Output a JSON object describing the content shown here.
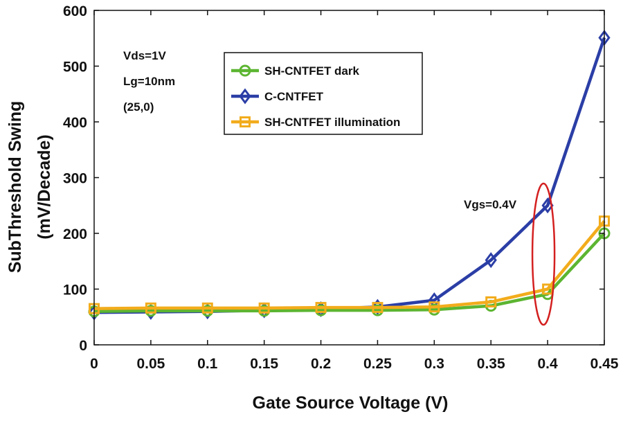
{
  "chart_data": {
    "type": "line",
    "title": "",
    "xlabel": "Gate Source Voltage  (V)",
    "ylabel_line1": "SubThreshold Swing",
    "ylabel_line2": "(mV/Decade)",
    "xlim": [
      0,
      0.45
    ],
    "ylim": [
      0,
      600
    ],
    "x": [
      0,
      0.05,
      0.1,
      0.15,
      0.2,
      0.25,
      0.3,
      0.35,
      0.4,
      0.45
    ],
    "x_tick_labels": [
      "0",
      "0.05",
      "0.1",
      "0.15",
      "0.2",
      "0.25",
      "0.3",
      "0.35",
      "0.4",
      "0.45"
    ],
    "y_ticks": [
      0,
      100,
      200,
      300,
      400,
      500,
      600
    ],
    "y_tick_labels": [
      "0",
      "100",
      "200",
      "300",
      "400",
      "500",
      "600"
    ],
    "legend_position": "top-center",
    "series": [
      {
        "name": "SH-CNTFET dark",
        "color": "#5cb531",
        "marker": "circle",
        "values": [
          60,
          61,
          61,
          61,
          62,
          62,
          63,
          70,
          91,
          200
        ]
      },
      {
        "name": "C-CNTFET",
        "color": "#2b3ea6",
        "marker": "diamond",
        "values": [
          58,
          59,
          60,
          62,
          64,
          68,
          80,
          152,
          250,
          551
        ]
      },
      {
        "name": "SH-CNTFET illumination",
        "color": "#f2ac1c",
        "marker": "square",
        "values": [
          65,
          66,
          66,
          66,
          67,
          67,
          68,
          77,
          100,
          222
        ]
      }
    ],
    "annotations": {
      "params": [
        "Vds=1V",
        "Lg=10nm",
        "(25,0)"
      ],
      "highlight_label": "Vgs=0.4V",
      "highlight_x": 0.4,
      "highlight_color": "#d42020"
    }
  }
}
